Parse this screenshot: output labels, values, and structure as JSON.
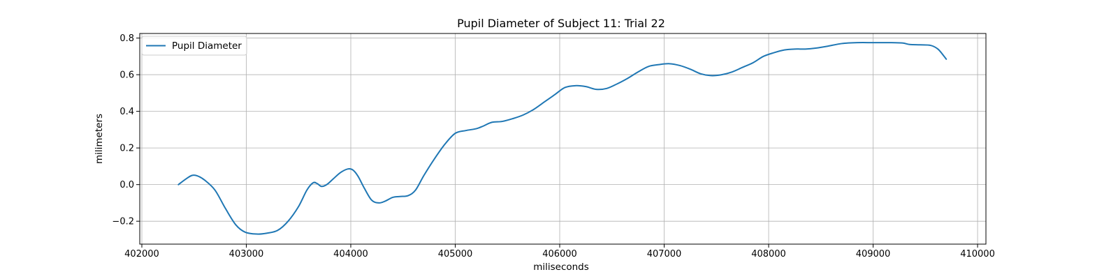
{
  "chart_data": {
    "type": "line",
    "title": "Pupil Diameter of Subject 11: Trial 22",
    "xlabel": "miliseconds",
    "ylabel": "milimeters",
    "xlim": [
      401980,
      410080
    ],
    "ylim": [
      -0.325,
      0.825
    ],
    "xticks": [
      402000,
      403000,
      404000,
      405000,
      406000,
      407000,
      408000,
      409000,
      410000
    ],
    "xtick_labels": [
      "402000",
      "403000",
      "404000",
      "405000",
      "406000",
      "407000",
      "408000",
      "409000",
      "410000"
    ],
    "yticks": [
      -0.2,
      0.0,
      0.2,
      0.4,
      0.6,
      0.8
    ],
    "ytick_labels": [
      "−0.2",
      "0.0",
      "0.2",
      "0.4",
      "0.6",
      "0.8"
    ],
    "grid": true,
    "legend_position": "upper-left",
    "series": [
      {
        "name": "Pupil Diameter",
        "color": "#1f77b4",
        "x": [
          402350,
          402420,
          402480,
          402530,
          402600,
          402700,
          402800,
          402900,
          402990,
          403100,
          403200,
          403300,
          403400,
          403500,
          403580,
          403640,
          403680,
          403720,
          403770,
          403830,
          403900,
          403970,
          404020,
          404070,
          404130,
          404200,
          404270,
          404330,
          404400,
          404470,
          404550,
          404620,
          404700,
          404800,
          404900,
          405000,
          405100,
          405200,
          405270,
          405350,
          405450,
          405550,
          405650,
          405750,
          405850,
          405950,
          406050,
          406150,
          406250,
          406350,
          406450,
          406550,
          406650,
          406750,
          406850,
          406950,
          407050,
          407150,
          407250,
          407350,
          407450,
          407550,
          407650,
          407750,
          407850,
          407950,
          408050,
          408150,
          408250,
          408350,
          408450,
          408560,
          408700,
          408850,
          409000,
          409150,
          409280,
          409350,
          409450,
          409550,
          409620,
          409680,
          409700
        ],
        "values": [
          0.0,
          0.03,
          0.05,
          0.048,
          0.025,
          -0.03,
          -0.13,
          -0.22,
          -0.26,
          -0.27,
          -0.265,
          -0.25,
          -0.2,
          -0.12,
          -0.03,
          0.01,
          0.005,
          -0.01,
          0.0,
          0.03,
          0.065,
          0.085,
          0.08,
          0.045,
          -0.02,
          -0.085,
          -0.1,
          -0.09,
          -0.07,
          -0.065,
          -0.06,
          -0.03,
          0.05,
          0.14,
          0.22,
          0.28,
          0.295,
          0.305,
          0.32,
          0.34,
          0.345,
          0.36,
          0.38,
          0.41,
          0.45,
          0.49,
          0.53,
          0.54,
          0.535,
          0.52,
          0.525,
          0.55,
          0.58,
          0.615,
          0.645,
          0.655,
          0.66,
          0.65,
          0.63,
          0.605,
          0.595,
          0.6,
          0.615,
          0.64,
          0.665,
          0.7,
          0.72,
          0.735,
          0.74,
          0.74,
          0.745,
          0.755,
          0.77,
          0.775,
          0.775,
          0.775,
          0.773,
          0.765,
          0.763,
          0.76,
          0.74,
          0.7,
          0.685
        ]
      }
    ]
  }
}
